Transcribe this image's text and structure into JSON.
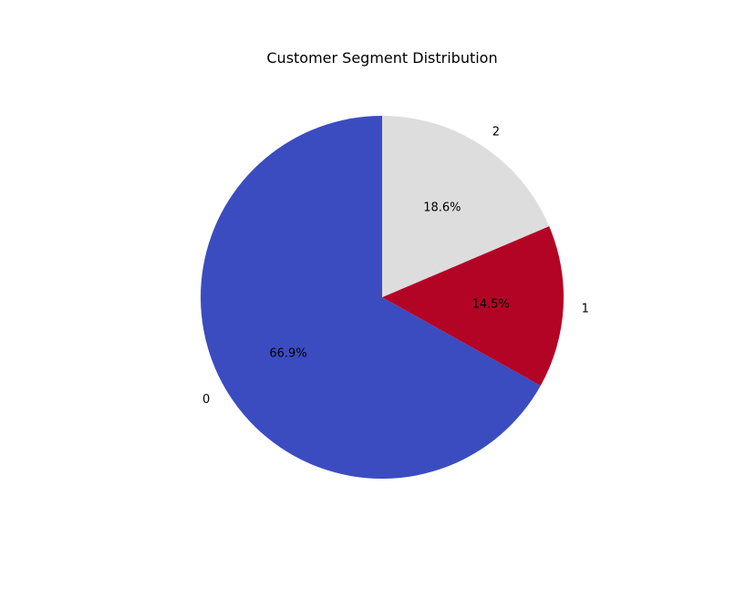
{
  "chart_data": {
    "type": "pie",
    "title": "Customer Segment Distribution",
    "start_angle_deg": 90,
    "direction": "counterclockwise",
    "slices": [
      {
        "label": "0",
        "value": 66.9,
        "pct_label": "66.9%",
        "color": "#3b4cc0"
      },
      {
        "label": "1",
        "value": 14.5,
        "pct_label": "14.5%",
        "color": "#b40426"
      },
      {
        "label": "2",
        "value": 18.6,
        "pct_label": "18.6%",
        "color": "#dddddd"
      }
    ],
    "legend": "none"
  }
}
